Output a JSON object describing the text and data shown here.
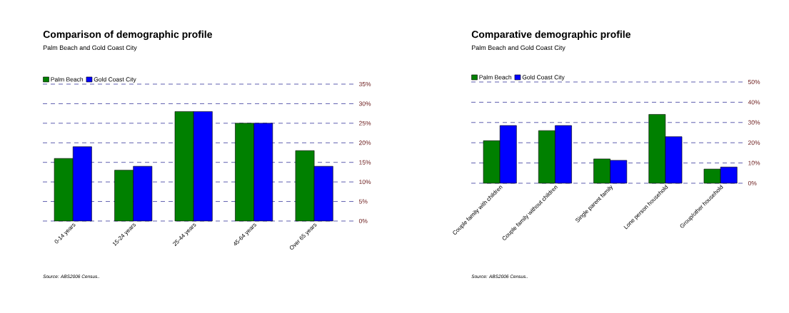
{
  "chart_data": [
    {
      "type": "bar",
      "title": "Comparison of demographic profile",
      "subtitle": "Palm Beach and Gold Coast City",
      "categories": [
        "0-14 years",
        "15-24 years",
        "25-44 years",
        "45-64 years",
        "Over 65 years"
      ],
      "series": [
        {
          "name": "Palm Beach",
          "color": "#008000",
          "values": [
            16,
            13,
            28,
            25,
            18
          ]
        },
        {
          "name": "Gold Coast City",
          "color": "#0000ff",
          "values": [
            19,
            14,
            28,
            25,
            14
          ]
        }
      ],
      "ylim": [
        0,
        35
      ],
      "yticks": [
        {
          "value": 0,
          "label": "0%"
        },
        {
          "value": 5,
          "label": "5%"
        },
        {
          "value": 10,
          "label": "10%"
        },
        {
          "value": 15,
          "label": "15%"
        },
        {
          "value": 20,
          "label": "20%"
        },
        {
          "value": 25,
          "label": "25%"
        },
        {
          "value": 30,
          "label": "30%"
        },
        {
          "value": 35,
          "label": "35%"
        }
      ],
      "grid": "y",
      "legend": "top left",
      "annotations": [
        "Source: ABS2006 Census.."
      ]
    },
    {
      "type": "bar",
      "title": "Comparative demographic profile",
      "subtitle": "Palm Beach and Gold Coast City",
      "categories": [
        "Couple family with children",
        "Couple family without children",
        "Single parent family",
        "Lone person household",
        "Group/other household"
      ],
      "series": [
        {
          "name": "Palm Beach",
          "color": "#008000",
          "values": [
            21,
            26,
            12,
            34,
            7
          ]
        },
        {
          "name": "Gold Coast City",
          "color": "#0000ff",
          "values": [
            28.5,
            28.5,
            11.3,
            23,
            8
          ]
        }
      ],
      "ylim": [
        0,
        50
      ],
      "yticks": [
        {
          "value": 0,
          "label": "0%"
        },
        {
          "value": 10,
          "label": "10%"
        },
        {
          "value": 20,
          "label": "20%"
        },
        {
          "value": 30,
          "label": "30%"
        },
        {
          "value": 40,
          "label": "40%"
        },
        {
          "value": 50,
          "label": "50%"
        }
      ],
      "grid": "y",
      "legend": "top left",
      "annotations": [
        "Source: ABS2006 Census.."
      ]
    }
  ]
}
